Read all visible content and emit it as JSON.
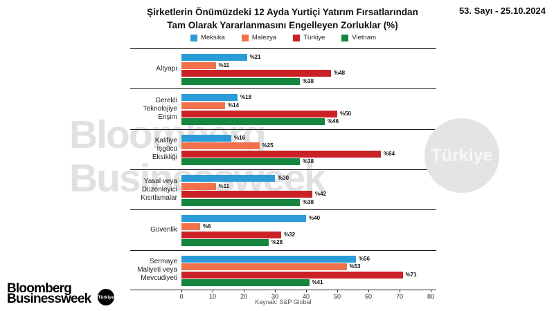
{
  "header": {
    "title_line1": "Şirketlerin Önümüzdeki 12 Ayda Yurtiçi Yatırım Fırsatlarından",
    "title_line2": "Tam Olarak Yararlanmasını Engelleyen Zorluklar (%)",
    "issue_date": "53. Sayı - 25.10.2024"
  },
  "chart_data": {
    "type": "bar",
    "orientation": "horizontal",
    "title": "Şirketlerin Önümüzdeki 12 Ayda Yurtiçi Yatırım Fırsatlarından Tam Olarak Yararlanmasını Engelleyen Zorluklar (%)",
    "categories": [
      "Altyapı",
      "Gerekli Teknolojiye Erişim",
      "Kalifiye İşgücü Eksikliği",
      "Yasal veya Düzenleyici Kısıtlamalar",
      "Güvenlik",
      "Sermaye Maliyeti veya Mevcudiyeti"
    ],
    "category_lines": [
      [
        "Altyapı"
      ],
      [
        "Gerekli",
        "Teknolojiye",
        "Erişim"
      ],
      [
        "Kalifiye",
        "İşgücü",
        "Eksikliği"
      ],
      [
        "Yasal veya",
        "Düzenleyici",
        "Kısıtlamalar"
      ],
      [
        "Güvenlik"
      ],
      [
        "Sermaye",
        "Maliyeti veya",
        "Mevcudiyeti"
      ]
    ],
    "series": [
      {
        "name": "Meksika",
        "color": "#2b9cd8",
        "values": [
          21,
          18,
          16,
          30,
          40,
          56
        ]
      },
      {
        "name": "Malezya",
        "color": "#f1714b",
        "values": [
          11,
          14,
          25,
          11,
          6,
          53
        ]
      },
      {
        "name": "Türkiye",
        "color": "#ca2127",
        "values": [
          48,
          50,
          64,
          42,
          32,
          71
        ]
      },
      {
        "name": "Vietnam",
        "color": "#15853f",
        "values": [
          38,
          46,
          38,
          38,
          28,
          41
        ]
      }
    ],
    "value_label_prefix": "%",
    "xlim": [
      0,
      80
    ],
    "xticks": [
      0,
      10,
      20,
      30,
      40,
      50,
      60,
      70,
      80
    ],
    "grid": false,
    "legend_position": "top",
    "source": "Kaynak: S&P Global"
  },
  "watermarks": {
    "big_text_line1": "Bloomberg",
    "big_text_line2": "Businessweek",
    "circle_text": "Türkiye"
  },
  "footer_logo": {
    "line1": "Bloomberg",
    "line2": "Businessweek",
    "badge": "Türkiye"
  },
  "colors": {
    "meksika": "#2b9cd8",
    "malezya": "#f1714b",
    "turkiye": "#ca2127",
    "vietnam": "#15853f",
    "axis_line": "#1a1a1a",
    "watermark_gray": "#e1e1e1"
  }
}
